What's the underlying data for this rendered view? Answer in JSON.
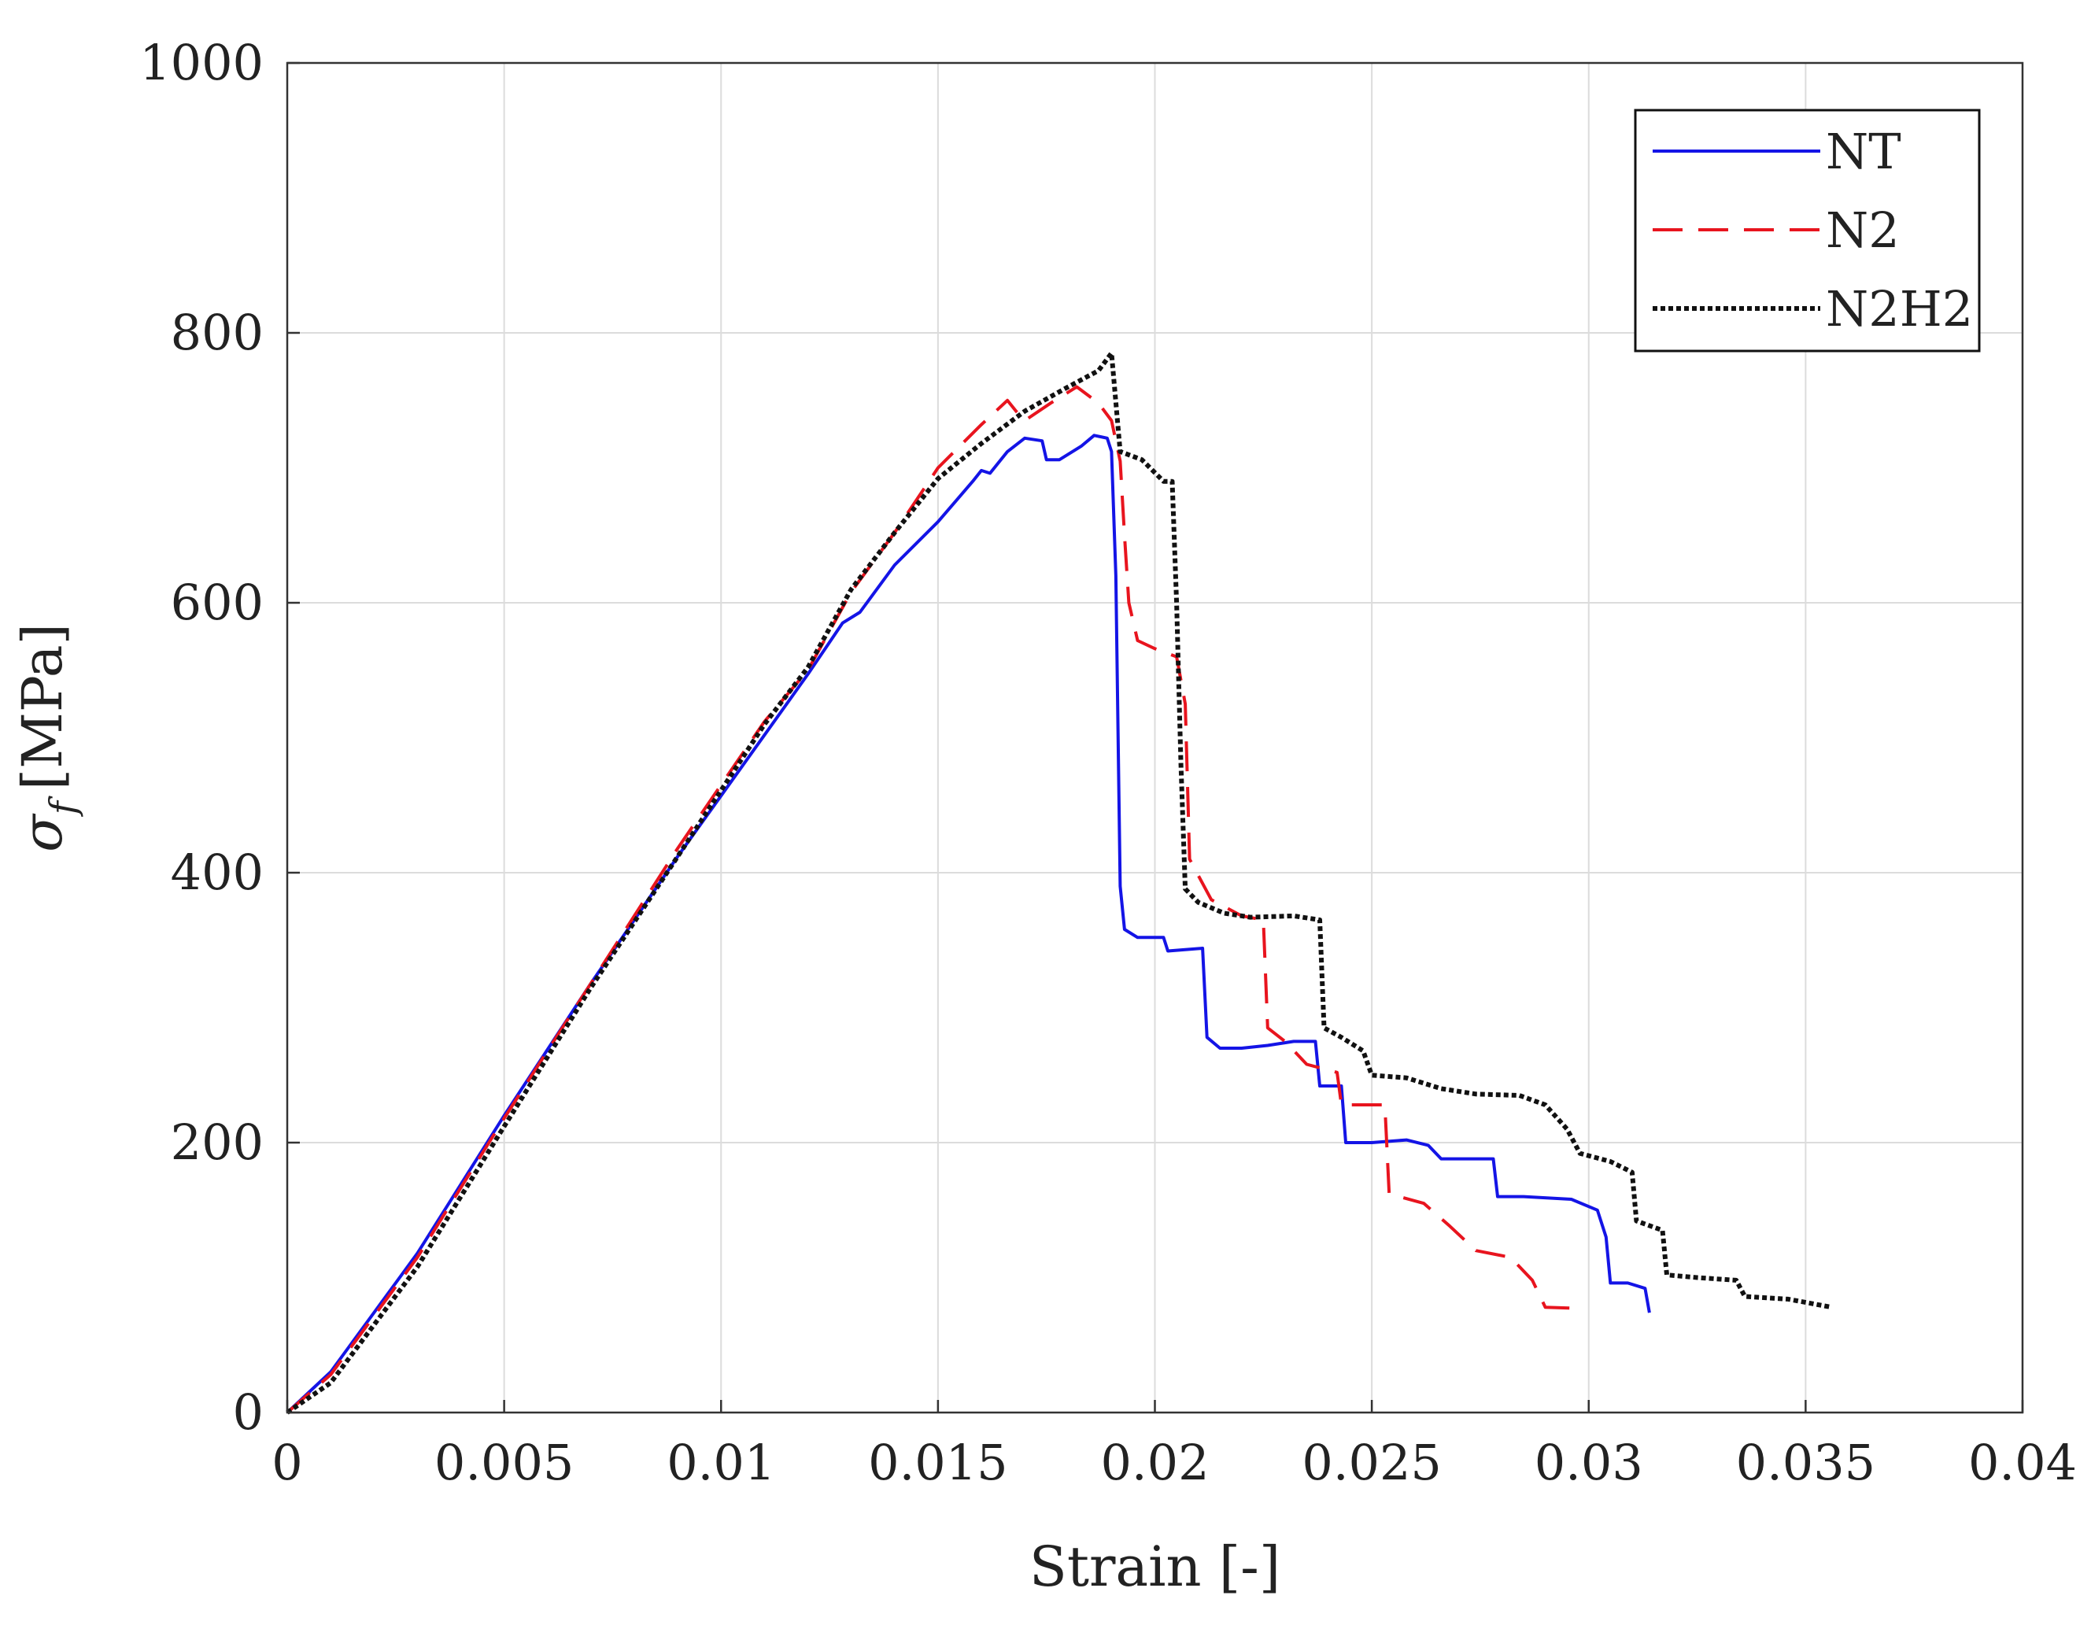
{
  "chart_data": {
    "type": "line",
    "title": "",
    "xlabel": "Strain [-]",
    "ylabel": "σ f [MPa]",
    "ylabel_main": "σ",
    "ylabel_sub": "f",
    "ylabel_unit": "[MPa]",
    "xlim": [
      0,
      0.04
    ],
    "ylim": [
      0,
      1000
    ],
    "grid": true,
    "legend_position": "top-right",
    "xticks": [
      0,
      0.005,
      0.01,
      0.015,
      0.02,
      0.025,
      0.03,
      0.035,
      0.04
    ],
    "xtick_labels": [
      "0",
      "0.005",
      "0.01",
      "0.015",
      "0.02",
      "0.025",
      "0.03",
      "0.035",
      "0.04"
    ],
    "yticks": [
      0,
      200,
      400,
      600,
      800,
      1000
    ],
    "ytick_labels": [
      "0",
      "200",
      "400",
      "600",
      "800",
      "1000"
    ],
    "series": [
      {
        "name": "NT",
        "color": "#1414e6",
        "style": "solid",
        "points": [
          [
            0,
            0
          ],
          [
            0.001,
            30
          ],
          [
            0.003,
            118
          ],
          [
            0.005,
            220
          ],
          [
            0.007,
            318
          ],
          [
            0.009,
            412
          ],
          [
            0.011,
            502
          ],
          [
            0.012,
            547
          ],
          [
            0.0128,
            585
          ],
          [
            0.0132,
            593
          ],
          [
            0.014,
            628
          ],
          [
            0.015,
            660
          ],
          [
            0.0158,
            690
          ],
          [
            0.016,
            698
          ],
          [
            0.0162,
            696
          ],
          [
            0.0166,
            712
          ],
          [
            0.017,
            722
          ],
          [
            0.0174,
            720
          ],
          [
            0.0175,
            706
          ],
          [
            0.0178,
            706
          ],
          [
            0.0183,
            716
          ],
          [
            0.0186,
            724
          ],
          [
            0.0189,
            722
          ],
          [
            0.019,
            712
          ],
          [
            0.0191,
            620
          ],
          [
            0.0192,
            390
          ],
          [
            0.0193,
            358
          ],
          [
            0.0196,
            352
          ],
          [
            0.0202,
            352
          ],
          [
            0.0203,
            342
          ],
          [
            0.0211,
            344
          ],
          [
            0.0212,
            278
          ],
          [
            0.0215,
            270
          ],
          [
            0.022,
            270
          ],
          [
            0.0226,
            272
          ],
          [
            0.0232,
            275
          ],
          [
            0.0237,
            275
          ],
          [
            0.0238,
            242
          ],
          [
            0.0243,
            242
          ],
          [
            0.0244,
            200
          ],
          [
            0.025,
            200
          ],
          [
            0.0258,
            202
          ],
          [
            0.0263,
            198
          ],
          [
            0.0266,
            188
          ],
          [
            0.0278,
            188
          ],
          [
            0.0279,
            160
          ],
          [
            0.0285,
            160
          ],
          [
            0.0296,
            158
          ],
          [
            0.0302,
            150
          ],
          [
            0.0304,
            130
          ],
          [
            0.0305,
            96
          ],
          [
            0.0309,
            96
          ],
          [
            0.0313,
            92
          ],
          [
            0.0314,
            74
          ]
        ]
      },
      {
        "name": "N2",
        "color": "#e8141e",
        "style": "dashed",
        "points": [
          [
            0,
            0
          ],
          [
            0.001,
            28
          ],
          [
            0.003,
            115
          ],
          [
            0.005,
            218
          ],
          [
            0.007,
            318
          ],
          [
            0.009,
            418
          ],
          [
            0.011,
            512
          ],
          [
            0.012,
            550
          ],
          [
            0.013,
            608
          ],
          [
            0.014,
            652
          ],
          [
            0.015,
            700
          ],
          [
            0.016,
            732
          ],
          [
            0.0166,
            750
          ],
          [
            0.0168,
            742
          ],
          [
            0.017,
            735
          ],
          [
            0.0176,
            748
          ],
          [
            0.0182,
            760
          ],
          [
            0.0187,
            748
          ],
          [
            0.019,
            735
          ],
          [
            0.0192,
            705
          ],
          [
            0.0193,
            650
          ],
          [
            0.0194,
            600
          ],
          [
            0.0196,
            572
          ],
          [
            0.02,
            566
          ],
          [
            0.0205,
            560
          ],
          [
            0.0207,
            525
          ],
          [
            0.0208,
            410
          ],
          [
            0.021,
            398
          ],
          [
            0.0213,
            380
          ],
          [
            0.022,
            368
          ],
          [
            0.0225,
            365
          ],
          [
            0.0226,
            285
          ],
          [
            0.023,
            275
          ],
          [
            0.0235,
            258
          ],
          [
            0.0242,
            252
          ],
          [
            0.0243,
            228
          ],
          [
            0.0253,
            228
          ],
          [
            0.0254,
            162
          ],
          [
            0.0262,
            155
          ],
          [
            0.0268,
            138
          ],
          [
            0.0274,
            120
          ],
          [
            0.0282,
            115
          ],
          [
            0.0287,
            98
          ],
          [
            0.029,
            78
          ],
          [
            0.0299,
            77
          ]
        ]
      },
      {
        "name": "N2H2",
        "color": "#111111",
        "style": "dotted",
        "points": [
          [
            0,
            0
          ],
          [
            0.001,
            22
          ],
          [
            0.003,
            108
          ],
          [
            0.005,
            212
          ],
          [
            0.007,
            315
          ],
          [
            0.009,
            412
          ],
          [
            0.011,
            510
          ],
          [
            0.012,
            552
          ],
          [
            0.013,
            610
          ],
          [
            0.014,
            652
          ],
          [
            0.015,
            692
          ],
          [
            0.016,
            718
          ],
          [
            0.017,
            742
          ],
          [
            0.018,
            760
          ],
          [
            0.0187,
            772
          ],
          [
            0.019,
            785
          ],
          [
            0.0192,
            712
          ],
          [
            0.0197,
            706
          ],
          [
            0.0202,
            690
          ],
          [
            0.0204,
            690
          ],
          [
            0.0205,
            600
          ],
          [
            0.0206,
            480
          ],
          [
            0.0207,
            388
          ],
          [
            0.021,
            378
          ],
          [
            0.0216,
            370
          ],
          [
            0.0222,
            367
          ],
          [
            0.0232,
            368
          ],
          [
            0.0238,
            365
          ],
          [
            0.0239,
            285
          ],
          [
            0.0243,
            278
          ],
          [
            0.0248,
            268
          ],
          [
            0.025,
            250
          ],
          [
            0.0258,
            248
          ],
          [
            0.0266,
            240
          ],
          [
            0.0274,
            236
          ],
          [
            0.0284,
            235
          ],
          [
            0.029,
            228
          ],
          [
            0.0295,
            210
          ],
          [
            0.0298,
            192
          ],
          [
            0.0305,
            186
          ],
          [
            0.031,
            178
          ],
          [
            0.0311,
            142
          ],
          [
            0.0317,
            135
          ],
          [
            0.0318,
            102
          ],
          [
            0.0325,
            100
          ],
          [
            0.0334,
            98
          ],
          [
            0.0336,
            86
          ],
          [
            0.0346,
            84
          ],
          [
            0.0356,
            78
          ]
        ]
      }
    ]
  }
}
